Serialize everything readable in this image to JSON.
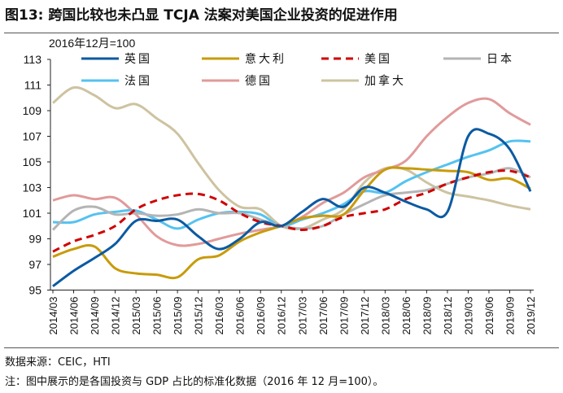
{
  "title": "图13:  跨国比较也未凸显 TCJA 法案对美国企业投资的促进作用",
  "source": "数据来源：CEIC，HTI",
  "note": "注：图中展示的是各国投资与 GDP 占比的标准化数据（2016 年 12 月=100）。",
  "chart_data": {
    "type": "line",
    "title": "",
    "unit_label": "2016年12月=100",
    "xlabel": "",
    "ylabel": "",
    "ylim": [
      95,
      113
    ],
    "yticks": [
      95,
      97,
      99,
      101,
      103,
      105,
      107,
      109,
      111,
      113
    ],
    "grid": false,
    "legend": "top",
    "categories": [
      "2014/03",
      "2014/06",
      "2014/09",
      "2014/12",
      "2015/03",
      "2015/06",
      "2015/09",
      "2015/12",
      "2016/03",
      "2016/06",
      "2016/09",
      "2016/12",
      "2017/03",
      "2017/06",
      "2017/09",
      "2017/12",
      "2018/03",
      "2018/06",
      "2018/09",
      "2018/12",
      "2019/03",
      "2019/06",
      "2019/09",
      "2019/12"
    ],
    "series": [
      {
        "name": "英国",
        "color": "#0B5AA2",
        "dash": false,
        "values": [
          95.3,
          96.5,
          97.5,
          98.6,
          100.4,
          100.4,
          100.5,
          99.2,
          98.2,
          99.0,
          100.3,
          100.0,
          101.1,
          102.1,
          101.5,
          103.0,
          102.6,
          101.9,
          101.3,
          101.1,
          107.0,
          107.2,
          106.0,
          102.7
        ]
      },
      {
        "name": "意大利",
        "color": "#C89B0A",
        "dash": false,
        "values": [
          97.6,
          98.2,
          98.4,
          96.7,
          96.3,
          96.2,
          96.0,
          97.4,
          97.7,
          98.8,
          99.5,
          100.0,
          100.6,
          100.8,
          100.9,
          102.8,
          104.4,
          104.5,
          104.4,
          104.3,
          104.2,
          103.6,
          103.7,
          102.9
        ]
      },
      {
        "name": "美国",
        "color": "#D00000",
        "dash": true,
        "values": [
          98.0,
          98.8,
          99.3,
          100.0,
          101.3,
          102.0,
          102.4,
          102.5,
          102.0,
          101.0,
          100.3,
          100.0,
          99.7,
          100.0,
          100.7,
          101.0,
          101.3,
          102.1,
          102.6,
          103.3,
          103.8,
          104.2,
          104.3,
          103.8
        ]
      },
      {
        "name": "日本",
        "color": "#B4B4B4",
        "dash": false,
        "values": [
          99.7,
          101.2,
          101.5,
          100.9,
          101.0,
          100.8,
          100.9,
          101.3,
          101.0,
          101.0,
          100.5,
          100.0,
          99.8,
          100.0,
          100.9,
          101.7,
          102.4,
          102.6,
          102.8,
          103.3,
          103.8,
          104.1,
          104.5,
          103.8
        ]
      },
      {
        "name": "法国",
        "color": "#55C2F0",
        "dash": false,
        "values": [
          100.3,
          100.3,
          100.9,
          101.1,
          101.2,
          100.5,
          99.8,
          100.5,
          101.0,
          101.1,
          100.9,
          100.0,
          100.5,
          101.0,
          101.7,
          102.7,
          102.6,
          103.5,
          104.2,
          104.8,
          105.4,
          105.9,
          106.6,
          106.6
        ]
      },
      {
        "name": "德国",
        "color": "#E19A9A",
        "dash": false,
        "values": [
          102.0,
          102.4,
          102.1,
          102.2,
          100.9,
          99.2,
          98.5,
          98.6,
          99.0,
          99.4,
          99.7,
          100.0,
          100.7,
          101.8,
          102.6,
          103.8,
          104.4,
          105.1,
          107.0,
          108.5,
          109.6,
          109.9,
          108.8,
          107.9
        ]
      },
      {
        "name": "加拿大",
        "color": "#CDC3A0",
        "dash": false,
        "values": [
          109.6,
          110.8,
          110.2,
          109.2,
          109.5,
          108.4,
          107.2,
          104.9,
          102.8,
          101.5,
          101.3,
          100.0,
          99.8,
          100.5,
          101.3,
          103.4,
          104.5,
          104.4,
          103.4,
          102.6,
          102.3,
          102.0,
          101.6,
          101.3
        ]
      }
    ]
  }
}
